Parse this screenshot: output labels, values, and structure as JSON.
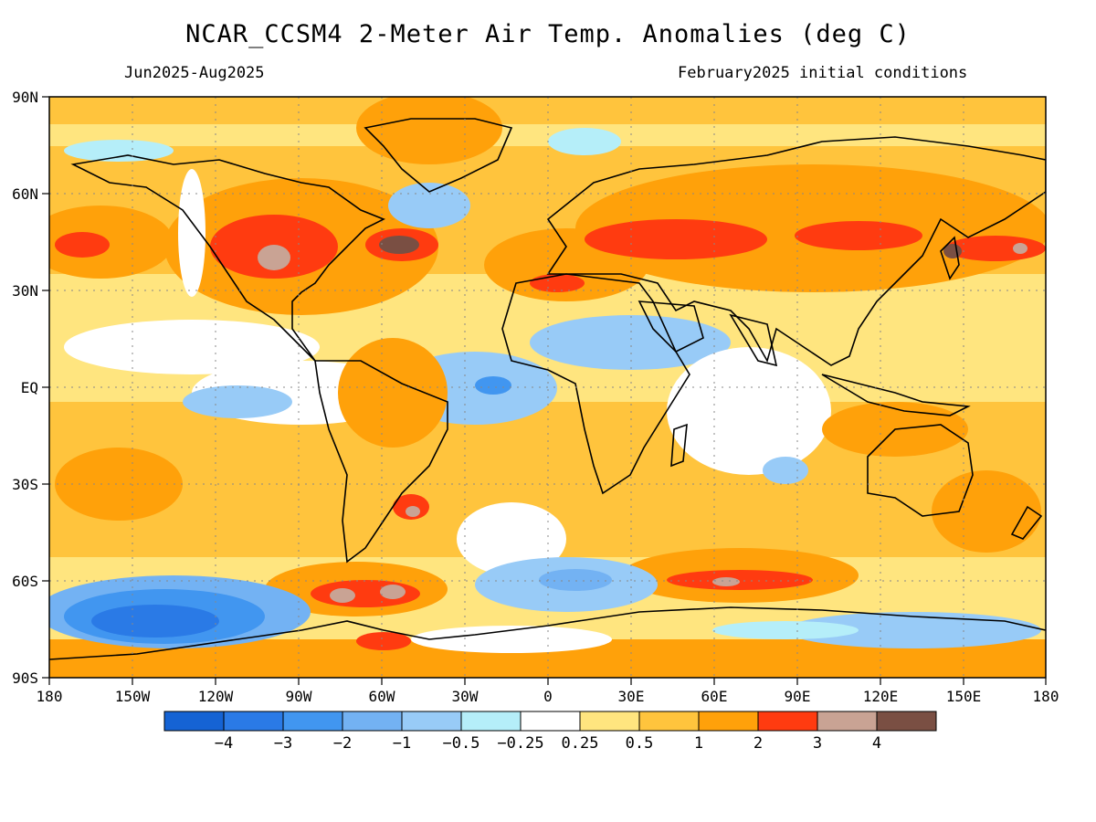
{
  "title": "NCAR_CCSM4 2-Meter Air Temp. Anomalies (deg C)",
  "subtitle_left": "Jun2025-Aug2025",
  "subtitle_right": "February2025 initial conditions",
  "lat_labels": [
    "90N",
    "60N",
    "30N",
    "EQ",
    "30S",
    "60S",
    "90S"
  ],
  "lon_labels": [
    "180",
    "150W",
    "120W",
    "90W",
    "60W",
    "30W",
    "0",
    "30E",
    "60E",
    "90E",
    "120E",
    "150E",
    "180"
  ],
  "colorbar": {
    "colors": [
      "#1563d4",
      "#2a7ae6",
      "#4196f0",
      "#73b2f3",
      "#98cbf7",
      "#b5eef9",
      "#ffffff",
      "#ffe57f",
      "#ffc43d",
      "#ffa10a",
      "#ff3b10",
      "#c9a394",
      "#7a4f43"
    ],
    "labels": [
      "-4",
      "-3",
      "-2",
      "-1",
      "-0.5",
      "-0.25",
      "0.25",
      "0.5",
      "1",
      "2",
      "3",
      "4"
    ]
  }
}
